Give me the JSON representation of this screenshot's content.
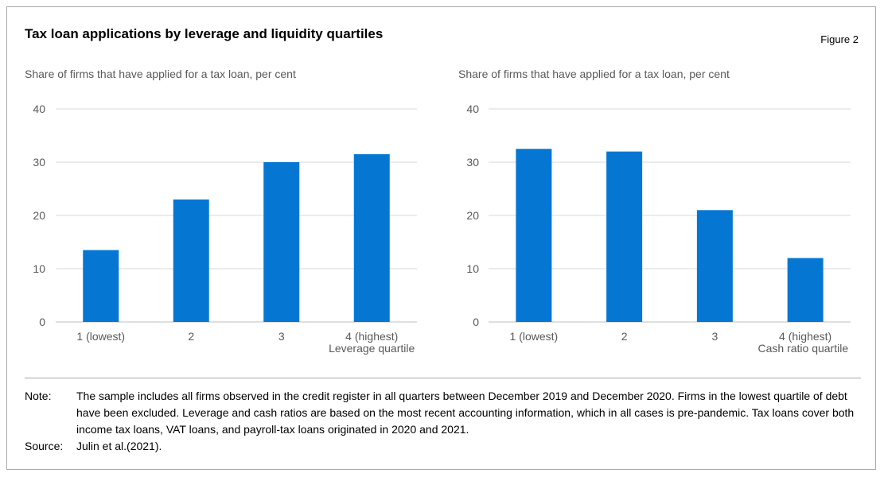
{
  "title": "Tax loan applications by leverage and liquidity quartiles",
  "figure_label": "Figure 2",
  "colors": {
    "bar": "#0577d3",
    "grid": "#d9d9d9",
    "text": "#595959"
  },
  "chart_data": [
    {
      "type": "bar",
      "subtitle": "Share of firms that have applied for a tax loan, per cent",
      "categories": [
        "1 (lowest)",
        "2",
        "3",
        "4 (highest)"
      ],
      "values": [
        13.5,
        23,
        30,
        31.5
      ],
      "xlabel": "Leverage quartile",
      "ylabel": "",
      "ylim": [
        0,
        40
      ],
      "yticks": [
        0,
        10,
        20,
        30,
        40
      ],
      "grid": true
    },
    {
      "type": "bar",
      "subtitle": "Share of firms that have applied for a tax loan, per cent",
      "categories": [
        "1 (lowest)",
        "2",
        "3",
        "4 (highest)"
      ],
      "values": [
        32.5,
        32,
        21,
        12
      ],
      "xlabel": "Cash ratio quartile",
      "ylabel": "",
      "ylim": [
        0,
        40
      ],
      "yticks": [
        0,
        10,
        20,
        30,
        40
      ],
      "grid": true
    }
  ],
  "notes": {
    "note_label": "Note:",
    "note_text": "The sample includes all firms observed in the credit register in all quarters between December 2019 and December 2020. Firms in the lowest quartile of debt have been excluded. Leverage and cash ratios are based on the most recent accounting information, which in all cases is pre-pandemic. Tax loans cover both income tax loans, VAT loans, and payroll-tax loans originated in 2020 and 2021.",
    "source_label": "Source:",
    "source_text": "Julin et al.(2021)."
  }
}
